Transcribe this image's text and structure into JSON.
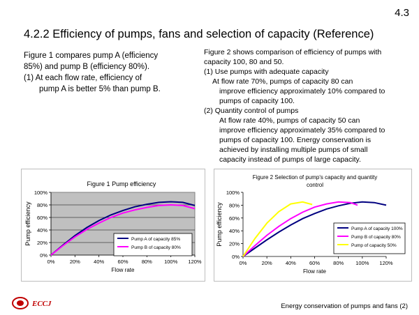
{
  "page": {
    "number": "4.3",
    "title": "4.2.2 Efficiency of pumps, fans and selection of capacity (Reference)"
  },
  "left_text": {
    "line1": "Figure 1 compares pump A (efficiency",
    "line2": "85%) and pump B (efficiency 80%).",
    "line3": "(1) At each flow rate, efficiency of",
    "line4": "pump A is better 5% than pump B."
  },
  "right_text": {
    "intro1": "Figure 2 shows comparison of efficiency of pumps with",
    "intro2": "capacity 100, 80 and 50.",
    "item1_head": "(1) Use pumps with adequate capacity",
    "item1_l1": "At flow rate 70%, pumps of capacity 80 can",
    "item1_l2": "improve efficiency approximately 10% compared to",
    "item1_l3": "pumps of capacity 100.",
    "item2_head": "(2) Quantity control of pumps",
    "item2_l1": "At flow rate 40%, pumps of capacity 50 can",
    "item2_l2": "improve efficiency approximately 35% compared to",
    "item2_l3": "pumps of capacity 100. Energy conservation is",
    "item2_l4": "achieved by installing multiple pumps of small",
    "item2_l5": "capacity instead of pumps of large capacity."
  },
  "footer": {
    "logo_text": "ECCJ",
    "caption": "Energy conservation of pumps and fans (2)"
  },
  "chart_data": [
    {
      "type": "line",
      "title": "Figure 1 Pump efficiency",
      "xlabel": "Flow rate",
      "ylabel": "Pump efficiency",
      "xlim": [
        0,
        120
      ],
      "ylim": [
        0,
        100
      ],
      "x_ticks": [
        "0%",
        "20%",
        "40%",
        "60%",
        "80%",
        "100%",
        "120%"
      ],
      "y_ticks": [
        "0%",
        "20%",
        "40%",
        "60%",
        "80%",
        "100%"
      ],
      "grid": true,
      "legend_position": "bottom-right",
      "series": [
        {
          "name": "Pump A of capacity  85%",
          "color": "#000080",
          "x": [
            0,
            10,
            20,
            30,
            40,
            50,
            60,
            70,
            80,
            90,
            100,
            110,
            120
          ],
          "y": [
            0,
            16,
            31,
            44,
            55,
            64,
            71,
            77,
            81,
            84,
            85,
            84,
            79
          ]
        },
        {
          "name": "Pump B of capacity 80%",
          "color": "#ff00ff",
          "x": [
            0,
            10,
            20,
            30,
            40,
            50,
            60,
            70,
            80,
            90,
            100,
            110,
            120
          ],
          "y": [
            0,
            15,
            29,
            41,
            51,
            60,
            67,
            72,
            76,
            79,
            80,
            79,
            74
          ]
        }
      ]
    },
    {
      "type": "line",
      "title": "Figure 2 Selection of pump's capacity and quantity",
      "title2": "control",
      "xlabel": "Flow rate",
      "ylabel": "Pump efficiency",
      "xlim": [
        0,
        120
      ],
      "ylim": [
        0,
        100
      ],
      "x_ticks": [
        "0%",
        "20%",
        "40%",
        "60%",
        "80%",
        "100%",
        "120%"
      ],
      "y_ticks": [
        "0%",
        "20%",
        "40%",
        "60%",
        "80%",
        "100%"
      ],
      "grid": false,
      "legend_position": "bottom-right",
      "series": [
        {
          "name": "Pump A of capacity 100%",
          "color": "#000080",
          "x": [
            0,
            10,
            20,
            30,
            40,
            50,
            60,
            70,
            80,
            90,
            100,
            110,
            120
          ],
          "y": [
            0,
            13,
            26,
            38,
            49,
            59,
            67,
            74,
            79,
            83,
            85,
            84,
            80
          ]
        },
        {
          "name": "Pump B of capacity 80%",
          "color": "#ff00ff",
          "x": [
            0,
            10,
            20,
            30,
            40,
            50,
            60,
            70,
            80,
            90,
            96
          ],
          "y": [
            0,
            17,
            33,
            47,
            59,
            69,
            77,
            82,
            85,
            84,
            80
          ]
        },
        {
          "name": "Pump of  capacity 50%",
          "color": "#ffff00",
          "x": [
            0,
            10,
            20,
            30,
            40,
            50,
            58
          ],
          "y": [
            0,
            28,
            52,
            70,
            82,
            85,
            81
          ]
        }
      ]
    }
  ]
}
